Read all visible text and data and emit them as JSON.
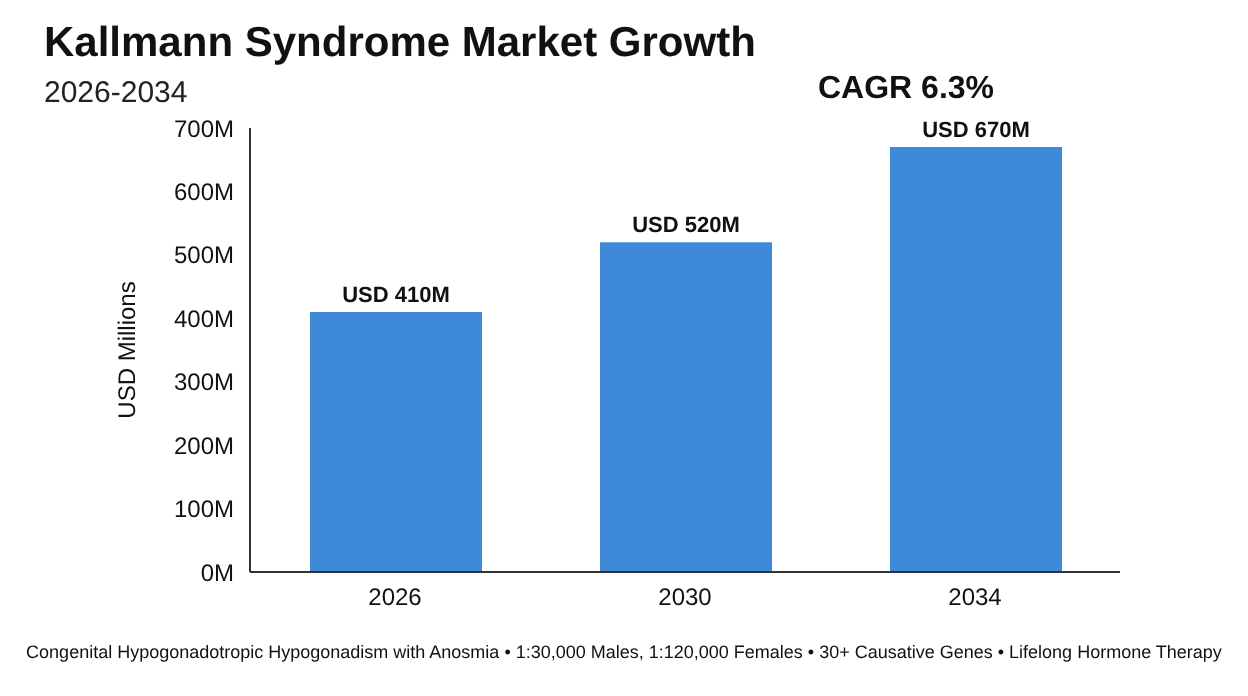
{
  "chart_data": {
    "type": "bar",
    "title": "Kallmann Syndrome Market Growth",
    "subtitle": "2026-2034",
    "ylabel": "USD Millions",
    "categories": [
      "2026",
      "2030",
      "2034"
    ],
    "values": [
      410,
      520,
      670
    ],
    "color": "#3f8ad8",
    "value_labels": [
      "USD 410M",
      "USD 520M",
      "USD 670M"
    ],
    "ylim": [
      0,
      700
    ],
    "yticks": [
      {
        "value": 0,
        "label": "0M"
      },
      {
        "value": 100,
        "label": "100M"
      },
      {
        "value": 200,
        "label": "200M"
      },
      {
        "value": 300,
        "label": "300M"
      },
      {
        "value": 400,
        "label": "400M"
      },
      {
        "value": 500,
        "label": "500M"
      },
      {
        "value": 600,
        "label": "600M"
      },
      {
        "value": 700,
        "label": "700M"
      }
    ],
    "grid": false,
    "legend": false,
    "annotations": [
      "CAGR 6.3%",
      "Congenital Hypogonadotropic Hypogonadism with Anosmia • 1:30,000 Males, 1:120,000 Females • 30+ Causative Genes • Lifelong Hormone Therapy"
    ]
  }
}
